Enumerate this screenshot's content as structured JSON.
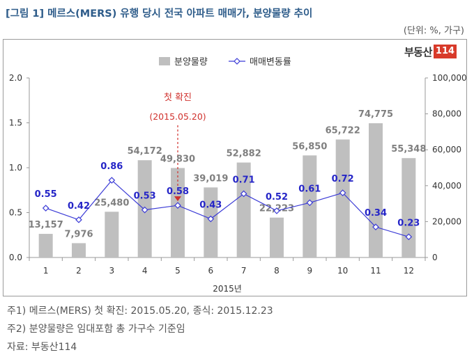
{
  "title": "[그림 1] 메르스(MERS) 유행 당시 전국 아파트 매매가, 분양물량 추이",
  "unit": "(단위: %, 가구)",
  "logo": {
    "text": "부동산",
    "badge": "114"
  },
  "annotation": {
    "label": "첫 확진",
    "date": "(2015.05.20)",
    "color": "#d0312d"
  },
  "notes": [
    "주1) 메르스(MERS) 첫 확진: 2015.05.20, 종식: 2015.12.23",
    "주2) 분양물량은 임대포함 총 가구수 기준임",
    "자료: 부동산114"
  ],
  "chart_data": {
    "type": "bar+line",
    "xlabel": "2015년",
    "categories": [
      "1",
      "2",
      "3",
      "4",
      "5",
      "6",
      "7",
      "8",
      "9",
      "10",
      "11",
      "12"
    ],
    "series": [
      {
        "name": "분양물량",
        "type": "bar",
        "axis": "right",
        "color": "#bfbfbf",
        "values": [
          13157,
          7976,
          25480,
          54172,
          49830,
          39019,
          52882,
          22223,
          56850,
          65722,
          74775,
          55348
        ],
        "labels": [
          "13,157",
          "7,976",
          "25,480",
          "54,172",
          "49,830",
          "39,019",
          "52,882",
          "22,223",
          "56,850",
          "65,722",
          "74,775",
          "55,348"
        ]
      },
      {
        "name": "매매변동률",
        "type": "line",
        "axis": "left",
        "color": "#3b3bd6",
        "values": [
          0.55,
          0.42,
          0.86,
          0.53,
          0.58,
          0.43,
          0.71,
          0.52,
          0.61,
          0.72,
          0.34,
          0.23
        ],
        "labels": [
          "0.55",
          "0.42",
          "0.86",
          "0.53",
          "0.58",
          "0.43",
          "0.71",
          "0.52",
          "0.61",
          "0.72",
          "0.34",
          "0.23"
        ]
      }
    ],
    "y_left": {
      "range": [
        0,
        2.0
      ],
      "ticks": [
        "0.0",
        "0.5",
        "1.0",
        "1.5",
        "2.0"
      ]
    },
    "y_right": {
      "range": [
        0,
        100000
      ],
      "ticks": [
        "0",
        "20,000",
        "40,000",
        "60,000",
        "80,000",
        "100,000"
      ]
    },
    "legend_position": "top-center",
    "grid": false
  }
}
